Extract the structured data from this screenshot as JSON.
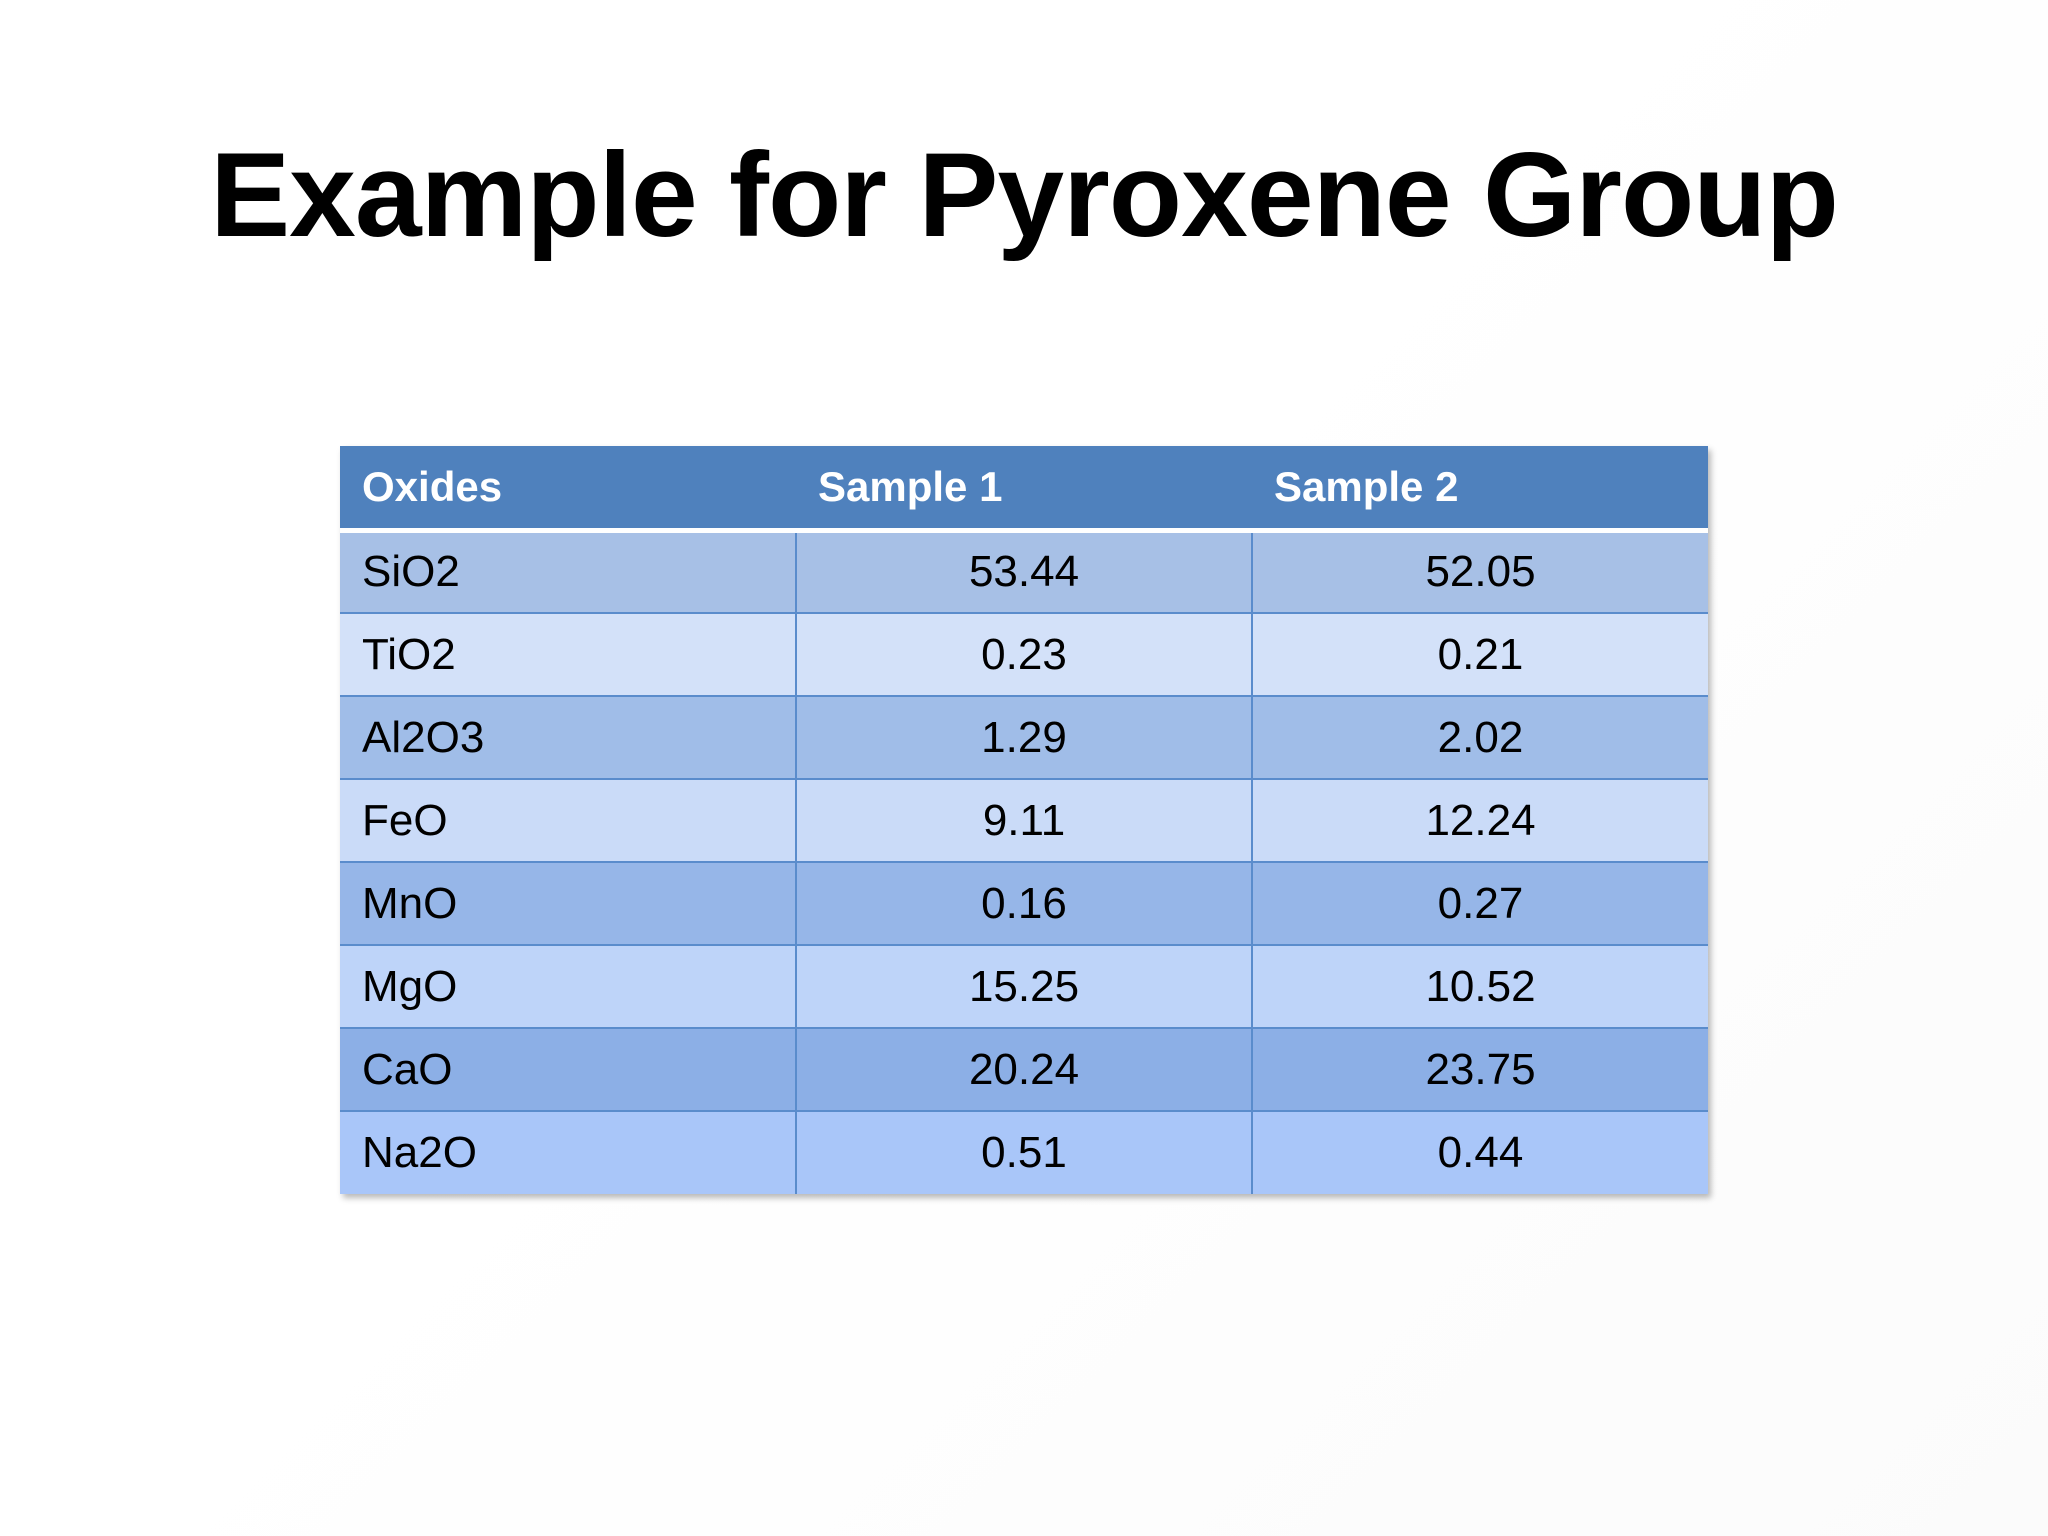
{
  "slide": {
    "title": "Example for Pyroxene Group"
  },
  "table": {
    "headers": [
      "Oxides",
      "Sample 1",
      "Sample 2"
    ],
    "rows": [
      [
        "SiO2",
        "53.44",
        "52.05"
      ],
      [
        "TiO2",
        "0.23",
        "0.21"
      ],
      [
        "Al2O3",
        "1.29",
        "2.02"
      ],
      [
        "FeO",
        "9.11",
        "12.24"
      ],
      [
        "MnO",
        "0.16",
        "0.27"
      ],
      [
        "MgO",
        "15.25",
        "10.52"
      ],
      [
        "CaO",
        "20.24",
        "23.75"
      ],
      [
        "Na2O",
        "0.51",
        "0.44"
      ]
    ],
    "colors": {
      "header_bg": "#4f81bd",
      "header_text": "#ffffff",
      "grid_line": "#5a8ccc"
    }
  }
}
